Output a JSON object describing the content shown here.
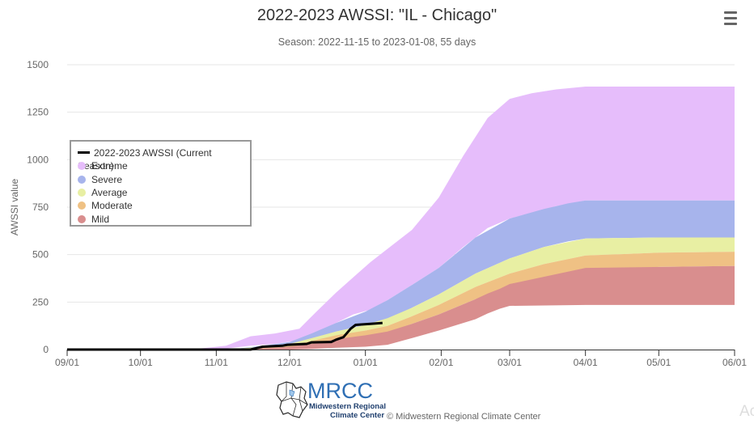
{
  "title": "2022-2023 AWSSI: \"IL - Chicago\"",
  "subtitle": "Season: 2022-11-15 to 2023-01-08, 55 days",
  "credit": "© Midwestern Regional Climate Center",
  "watermark": "Ac",
  "logo": {
    "title": "MRCC",
    "line1": "Midwestern Regional",
    "line2": "Climate Center"
  },
  "menu_icon": "hamburger-menu-icon",
  "chart_data": {
    "type": "area",
    "ylabel": "AWSSI value",
    "xlabel": "",
    "ylim": [
      0,
      1500
    ],
    "yticks": [
      0,
      250,
      500,
      750,
      1000,
      1250,
      1500
    ],
    "x_range": [
      "2022-09-01",
      "2023-06-01"
    ],
    "xtick_labels": [
      "09/01",
      "10/01",
      "11/01",
      "12/01",
      "01/01",
      "02/01",
      "03/01",
      "04/01",
      "05/01",
      "06/01"
    ],
    "xtick_dates": [
      "2022-09-01",
      "2022-10-01",
      "2022-11-01",
      "2022-12-01",
      "2023-01-01",
      "2023-02-01",
      "2023-03-01",
      "2023-04-01",
      "2023-05-01",
      "2023-06-01"
    ],
    "grid": "horizontal",
    "legend_position": "left",
    "bands": [
      {
        "name": "Extreme",
        "color": "#e6bdfb",
        "dates": [
          "2022-09-01",
          "2022-10-25",
          "2022-11-05",
          "2022-11-15",
          "2022-11-25",
          "2022-12-05",
          "2022-12-12",
          "2022-12-20",
          "2022-12-27",
          "2023-01-03",
          "2023-01-10",
          "2023-01-20",
          "2023-01-31",
          "2023-02-10",
          "2023-02-20",
          "2023-03-01",
          "2023-03-10",
          "2023-03-20",
          "2023-04-01",
          "2023-05-01",
          "2023-06-01"
        ],
        "upper": [
          0,
          5,
          20,
          70,
          85,
          110,
          200,
          300,
          380,
          460,
          530,
          630,
          800,
          1020,
          1220,
          1320,
          1350,
          1370,
          1385,
          1385,
          1385
        ],
        "lower": [
          0,
          0,
          5,
          20,
          30,
          50,
          90,
          140,
          185,
          210,
          260,
          340,
          430,
          540,
          640,
          690,
          720,
          755,
          785,
          785,
          785
        ]
      },
      {
        "name": "Severe",
        "color": "#a7b4ec",
        "dates": [
          "2022-09-01",
          "2022-11-10",
          "2022-11-20",
          "2022-12-01",
          "2022-12-10",
          "2022-12-20",
          "2023-01-01",
          "2023-01-10",
          "2023-01-20",
          "2023-01-31",
          "2023-02-15",
          "2023-03-01",
          "2023-03-15",
          "2023-03-25",
          "2023-04-01",
          "2023-05-01",
          "2023-06-01"
        ],
        "upper": [
          0,
          5,
          20,
          40,
          85,
          140,
          200,
          260,
          340,
          430,
          590,
          690,
          740,
          770,
          785,
          785,
          785
        ],
        "lower": [
          0,
          0,
          8,
          20,
          55,
          95,
          130,
          160,
          220,
          290,
          400,
          480,
          540,
          570,
          585,
          590,
          590
        ]
      },
      {
        "name": "Average",
        "color": "#e8efa3",
        "dates": [
          "2022-09-01",
          "2022-11-10",
          "2022-11-20",
          "2022-12-01",
          "2022-12-10",
          "2022-12-20",
          "2023-01-01",
          "2023-01-10",
          "2023-01-20",
          "2023-01-31",
          "2023-02-15",
          "2023-03-01",
          "2023-03-15",
          "2023-04-01",
          "2023-05-01",
          "2023-06-01"
        ],
        "upper": [
          0,
          5,
          15,
          30,
          60,
          95,
          130,
          165,
          220,
          290,
          400,
          480,
          540,
          585,
          590,
          590
        ],
        "lower": [
          0,
          0,
          5,
          15,
          40,
          70,
          100,
          125,
          175,
          235,
          330,
          400,
          450,
          495,
          510,
          515
        ]
      },
      {
        "name": "Moderate",
        "color": "#efc184",
        "dates": [
          "2022-09-01",
          "2022-11-10",
          "2022-11-20",
          "2022-12-01",
          "2022-12-10",
          "2022-12-20",
          "2023-01-01",
          "2023-01-10",
          "2023-01-20",
          "2023-01-31",
          "2023-02-15",
          "2023-03-01",
          "2023-03-15",
          "2023-04-01",
          "2023-05-01",
          "2023-06-01"
        ],
        "upper": [
          0,
          3,
          10,
          20,
          45,
          75,
          100,
          125,
          175,
          235,
          330,
          400,
          450,
          495,
          510,
          515
        ],
        "lower": [
          0,
          0,
          3,
          10,
          28,
          50,
          70,
          90,
          135,
          185,
          265,
          320,
          370,
          410,
          435,
          440
        ]
      },
      {
        "name": "Mild",
        "color": "#d98e8e",
        "dates": [
          "2022-09-01",
          "2022-11-10",
          "2022-11-20",
          "2022-12-01",
          "2022-12-10",
          "2022-12-20",
          "2023-01-01",
          "2023-01-10",
          "2023-01-20",
          "2023-01-31",
          "2023-02-15",
          "2023-02-20",
          "2023-02-25",
          "2023-03-01",
          "2023-04-01",
          "2023-06-01"
        ],
        "upper": [
          0,
          3,
          6,
          15,
          30,
          55,
          75,
          95,
          135,
          185,
          265,
          295,
          320,
          345,
          430,
          440
        ],
        "lower": [
          0,
          0,
          0,
          0,
          3,
          10,
          15,
          25,
          60,
          100,
          160,
          190,
          215,
          230,
          235,
          235
        ]
      }
    ],
    "series": [
      {
        "name": "2022-2023 AWSSI (Current Season)",
        "color": "#000000",
        "dates": [
          "2022-09-01",
          "2022-11-15",
          "2022-11-20",
          "2022-11-28",
          "2022-11-30",
          "2022-12-08",
          "2022-12-10",
          "2022-12-18",
          "2022-12-20",
          "2022-12-23",
          "2022-12-26",
          "2022-12-28",
          "2023-01-03",
          "2023-01-08"
        ],
        "values": [
          0,
          0,
          15,
          20,
          25,
          30,
          38,
          40,
          52,
          65,
          110,
          130,
          135,
          140
        ]
      }
    ],
    "legend": [
      {
        "label": "2022-2023 AWSSI (Current Season)",
        "kind": "line",
        "color": "#000000"
      },
      {
        "label": "Extreme",
        "kind": "swatch",
        "color": "#e6bdfb"
      },
      {
        "label": "Severe",
        "kind": "swatch",
        "color": "#a7b4ec"
      },
      {
        "label": "Average",
        "kind": "swatch",
        "color": "#e8efa3"
      },
      {
        "label": "Moderate",
        "kind": "swatch",
        "color": "#efc184"
      },
      {
        "label": "Mild",
        "kind": "swatch",
        "color": "#d98e8e"
      }
    ]
  }
}
